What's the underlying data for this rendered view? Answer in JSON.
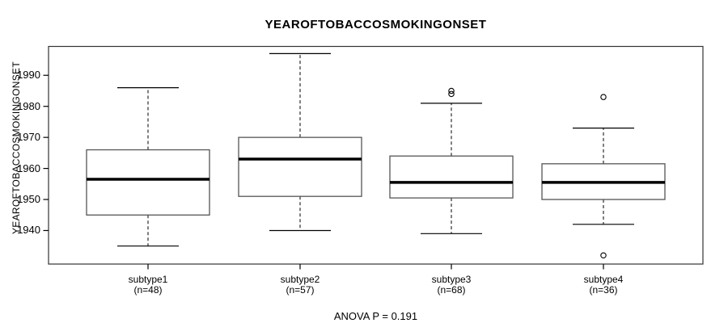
{
  "title": "YEAROFTOBACCOSMOKINGONSET",
  "colors": {
    "background": "#ffffff",
    "foreground": "#000000",
    "frame": "#333333",
    "box_border": "#555555"
  },
  "chart_data": {
    "type": "boxplot",
    "title": "YEAROFTOBACCOSMOKINGONSET",
    "ylabel": "YEAROFTOBACCOSMOKINGONSET",
    "xlabel": "",
    "ylim": [
      1929.2,
      1999.3
    ],
    "grid": "off",
    "y_ticks": [
      1990,
      1980,
      1970,
      1960,
      1950,
      1940
    ],
    "y_tick_labels": [
      "1990",
      "1980",
      "1970",
      "1960",
      "1950",
      "1940"
    ],
    "groups": [
      {
        "label": "subtype1",
        "n_label": "(n=48)",
        "n": 48,
        "whisker_low": 1935,
        "q1": 1945,
        "median": 1956.5,
        "q3": 1966,
        "whisker_high": 1986,
        "outliers": []
      },
      {
        "label": "subtype2",
        "n_label": "(n=57)",
        "n": 57,
        "whisker_low": 1940,
        "q1": 1951,
        "median": 1963,
        "q3": 1970,
        "whisker_high": 1997,
        "outliers": []
      },
      {
        "label": "subtype3",
        "n_label": "(n=68)",
        "n": 68,
        "whisker_low": 1939,
        "q1": 1950.5,
        "median": 1955.5,
        "q3": 1964,
        "whisker_high": 1981,
        "outliers": [
          1984,
          1985
        ]
      },
      {
        "label": "subtype4",
        "n_label": "(n=36)",
        "n": 36,
        "whisker_low": 1942,
        "q1": 1950,
        "median": 1955.5,
        "q3": 1961.5,
        "whisker_high": 1973,
        "outliers": [
          1983,
          1932
        ]
      }
    ],
    "anova_p": "ANOVA P = 0.191"
  }
}
